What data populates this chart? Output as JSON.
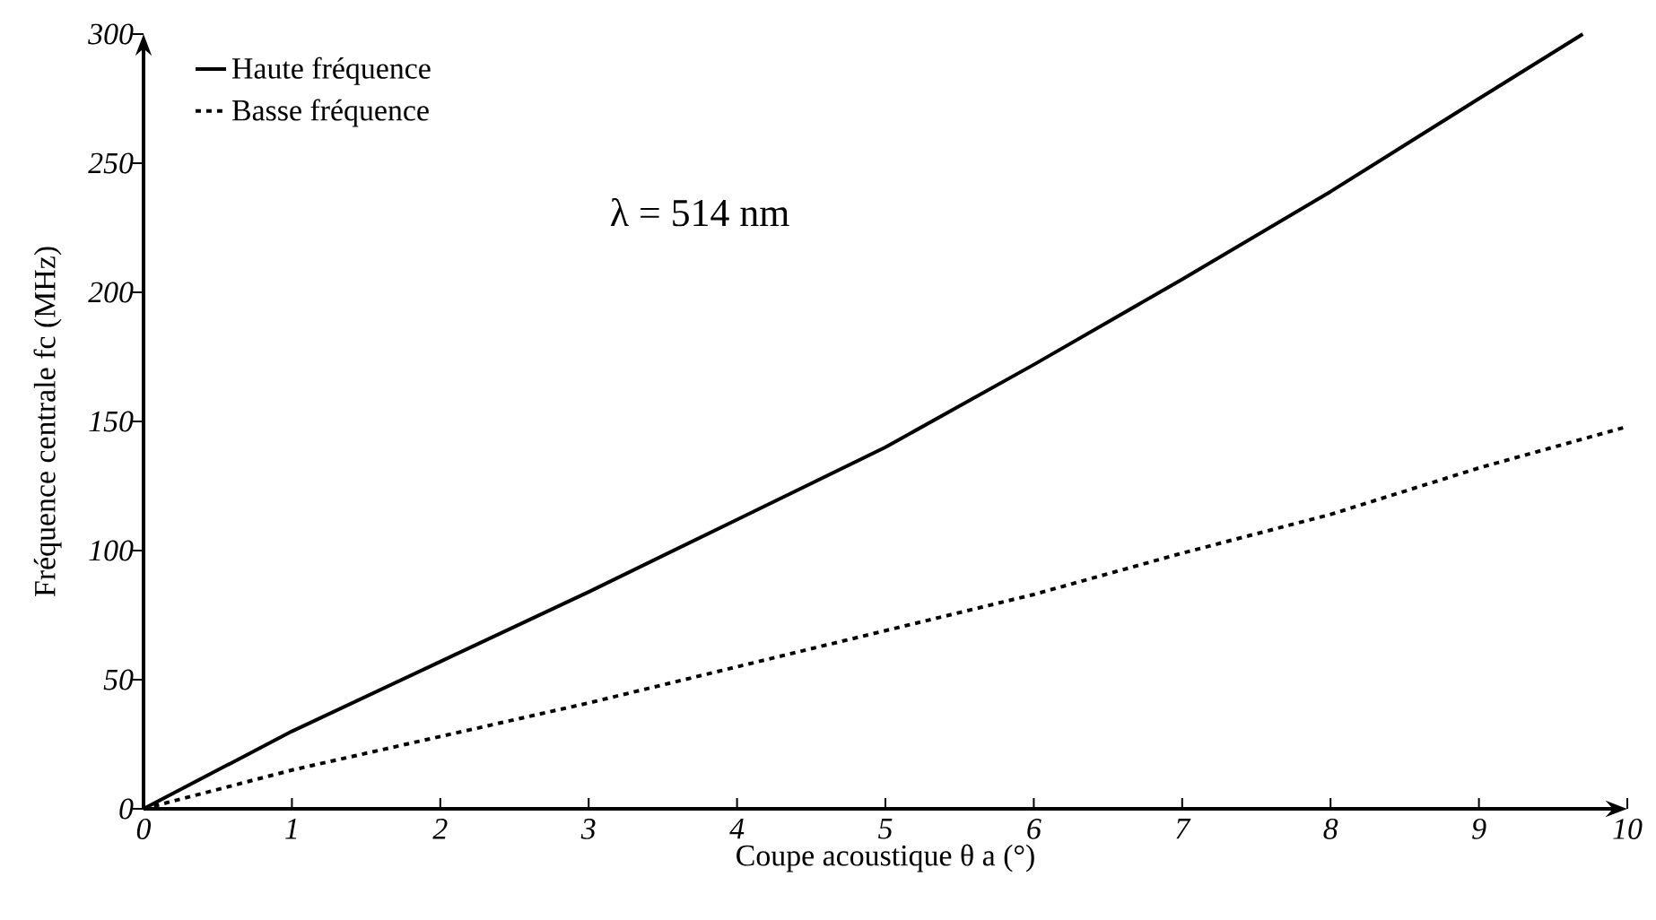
{
  "chart_data": {
    "type": "line",
    "xlabel": "Coupe acoustique θ a (°)",
    "ylabel": "Fréquence centrale fc (MHz)",
    "x": [
      0,
      1,
      2,
      3,
      4,
      5,
      6,
      7,
      8,
      9,
      9.7
    ],
    "series": [
      {
        "name": "Haute fréquence",
        "color": "#000000",
        "line_style": "solid",
        "values": [
          0,
          30,
          57,
          84,
          112,
          140,
          172,
          205,
          239,
          275,
          300
        ]
      },
      {
        "name": "Basse fréquence",
        "color": "#000000",
        "line_style": "dashed",
        "x": [
          0,
          1,
          2,
          3,
          4,
          5,
          6,
          7,
          8,
          9,
          10
        ],
        "values": [
          0,
          15,
          28,
          41,
          55,
          69,
          83,
          99,
          114,
          132,
          148
        ]
      }
    ],
    "xlim": [
      0,
      10
    ],
    "ylim": [
      0,
      300
    ],
    "xticks": [
      0,
      1,
      2,
      3,
      4,
      5,
      6,
      7,
      8,
      9,
      10
    ],
    "yticks": [
      0,
      50,
      100,
      150,
      200,
      250,
      300
    ],
    "legend": "top left",
    "grid": false,
    "marker": "none",
    "annotations": [
      "λ = 514 nm"
    ]
  }
}
